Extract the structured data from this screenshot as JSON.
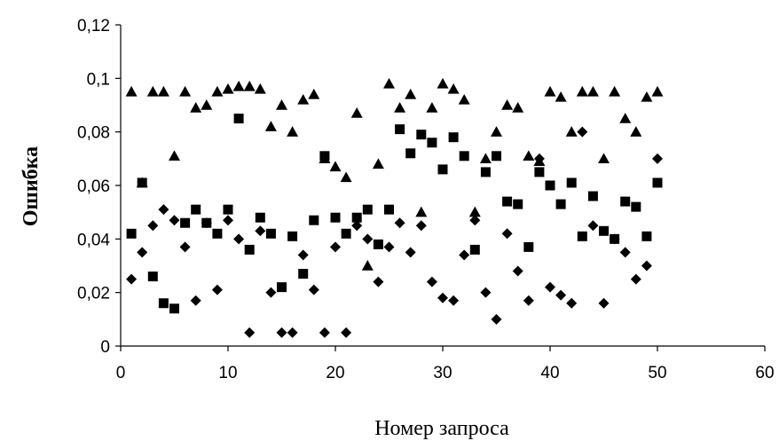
{
  "chart_data": {
    "type": "scatter",
    "title": "",
    "xlabel": "Номер запроса",
    "ylabel": "Ошибка",
    "xlim": [
      0,
      60
    ],
    "ylim": [
      0,
      0.12
    ],
    "x_ticks": [
      0,
      10,
      20,
      30,
      40,
      50,
      60
    ],
    "x_tick_labels": [
      "0",
      "10",
      "20",
      "30",
      "40",
      "50",
      "60"
    ],
    "y_ticks": [
      0,
      0.02,
      0.04,
      0.06,
      0.08,
      0.1,
      0.12
    ],
    "y_tick_labels": [
      "0",
      "0,02",
      "0,04",
      "0,06",
      "0,08",
      "0,1",
      "0,12"
    ],
    "grid": false,
    "legend": "none",
    "marker_color": "#000000",
    "series": [
      {
        "marker": "diamond",
        "x": [
          1,
          2,
          3,
          4,
          5,
          6,
          7,
          8,
          9,
          10,
          11,
          12,
          13,
          14,
          15,
          16,
          17,
          18,
          19,
          20,
          21,
          22,
          23,
          24,
          25,
          26,
          27,
          28,
          29,
          30,
          31,
          32,
          33,
          34,
          35,
          36,
          37,
          38,
          39,
          40,
          41,
          42,
          43,
          44,
          45,
          46,
          47,
          48,
          49,
          50
        ],
        "y": [
          0.025,
          0.035,
          0.045,
          0.051,
          0.047,
          0.037,
          0.017,
          0.046,
          0.021,
          0.047,
          0.04,
          0.005,
          0.043,
          0.02,
          0.005,
          0.005,
          0.034,
          0.021,
          0.005,
          0.037,
          0.005,
          0.045,
          0.04,
          0.024,
          0.037,
          0.046,
          0.035,
          0.045,
          0.024,
          0.018,
          0.017,
          0.034,
          0.047,
          0.02,
          0.01,
          0.042,
          0.028,
          0.017,
          0.07,
          0.022,
          0.019,
          0.016,
          0.08,
          0.045,
          0.016,
          0.04,
          0.035,
          0.025,
          0.03,
          0.07
        ]
      },
      {
        "marker": "square",
        "x": [
          1,
          2,
          3,
          4,
          5,
          6,
          7,
          8,
          9,
          10,
          11,
          12,
          13,
          14,
          15,
          16,
          17,
          18,
          19,
          20,
          21,
          22,
          23,
          24,
          25,
          26,
          27,
          28,
          29,
          30,
          31,
          32,
          33,
          34,
          35,
          36,
          37,
          38,
          39,
          40,
          41,
          42,
          43,
          44,
          45,
          46,
          47,
          48,
          49,
          50
        ],
        "y": [
          0.042,
          0.061,
          0.026,
          0.016,
          0.014,
          0.046,
          0.051,
          0.046,
          0.042,
          0.051,
          0.085,
          0.036,
          0.048,
          0.042,
          0.022,
          0.041,
          0.027,
          0.047,
          0.071,
          0.048,
          0.042,
          0.048,
          0.051,
          0.038,
          0.051,
          0.081,
          0.072,
          0.079,
          0.076,
          0.066,
          0.078,
          0.071,
          0.036,
          0.065,
          0.071,
          0.054,
          0.053,
          0.037,
          0.065,
          0.06,
          0.053,
          0.061,
          0.041,
          0.056,
          0.043,
          0.04,
          0.054,
          0.052,
          0.041,
          0.061
        ]
      },
      {
        "marker": "triangle",
        "x": [
          1,
          2,
          3,
          4,
          5,
          6,
          7,
          8,
          9,
          10,
          11,
          12,
          13,
          14,
          15,
          16,
          17,
          18,
          19,
          20,
          21,
          22,
          23,
          24,
          25,
          26,
          27,
          28,
          29,
          30,
          31,
          32,
          33,
          34,
          35,
          36,
          37,
          38,
          39,
          40,
          41,
          42,
          43,
          44,
          45,
          46,
          47,
          48,
          49,
          50
        ],
        "y": [
          0.095,
          0.061,
          0.095,
          0.095,
          0.071,
          0.095,
          0.089,
          0.09,
          0.095,
          0.096,
          0.097,
          0.097,
          0.096,
          0.082,
          0.09,
          0.08,
          0.092,
          0.094,
          0.07,
          0.067,
          0.063,
          0.087,
          0.03,
          0.068,
          0.098,
          0.089,
          0.094,
          0.05,
          0.089,
          0.098,
          0.096,
          0.092,
          0.05,
          0.07,
          0.08,
          0.09,
          0.089,
          0.071,
          0.069,
          0.095,
          0.093,
          0.08,
          0.095,
          0.095,
          0.07,
          0.095,
          0.085,
          0.08,
          0.093,
          0.095
        ]
      }
    ]
  }
}
